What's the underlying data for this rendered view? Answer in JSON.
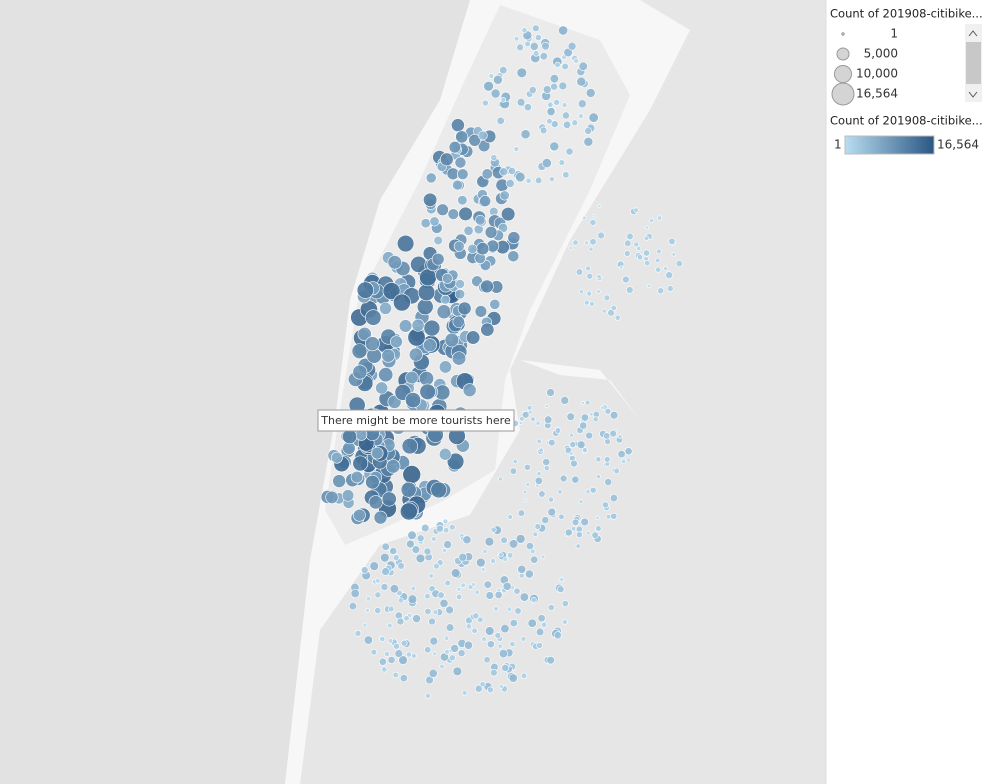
{
  "map": {
    "annotation": "There might be more tourists here",
    "size_legend": {
      "title": "Count of 201908-citibike...",
      "items": [
        1,
        {
          "value": 5000,
          "label": "5,000"
        },
        {
          "value": 10000,
          "label": "10,000"
        },
        {
          "value": 16564,
          "label": "16,564"
        }
      ]
    },
    "color_legend": {
      "title": "Count of 201908-citibike...",
      "min": 1,
      "max": {
        "value": 16564,
        "label": "16,564"
      },
      "colors": [
        "#b9ddf1",
        "#2a5783"
      ]
    }
  }
}
